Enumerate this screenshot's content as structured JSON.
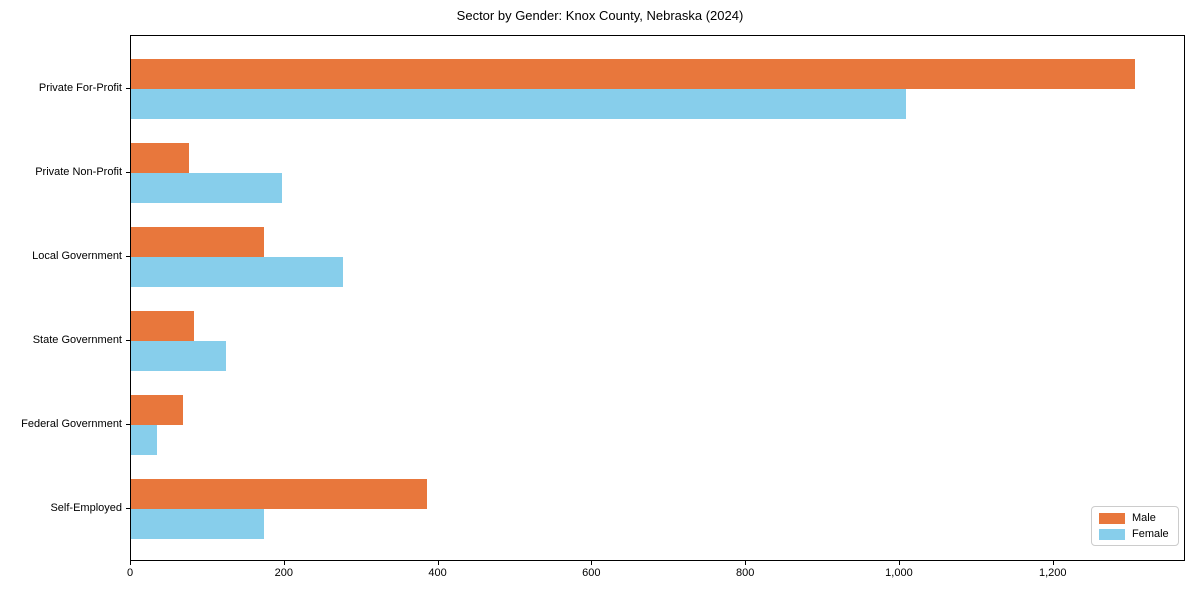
{
  "chart_data": {
    "type": "bar",
    "orientation": "horizontal",
    "title": "Sector by Gender: Knox County, Nebraska (2024)",
    "categories": [
      "Private For-Profit",
      "Private Non-Profit",
      "Local Government",
      "State Government",
      "Federal Government",
      "Self-Employed"
    ],
    "series": [
      {
        "name": "Male",
        "color": "#e8773c",
        "values": [
          1306,
          75,
          173,
          82,
          68,
          385
        ]
      },
      {
        "name": "Female",
        "color": "#87ceeb",
        "values": [
          1008,
          196,
          276,
          123,
          34,
          173
        ]
      }
    ],
    "xlabel": "",
    "ylabel": "",
    "xlim": [
      0,
      1372
    ],
    "xticks": [
      0,
      200,
      400,
      600,
      800,
      1000,
      1200
    ],
    "xtick_labels": [
      "0",
      "200",
      "400",
      "600",
      "800",
      "1,000",
      "1,200"
    ],
    "grid": false,
    "legend": {
      "position": "lower right",
      "entries": [
        "Male",
        "Female"
      ]
    },
    "colors": {
      "male": "#e8773c",
      "female": "#87ceeb",
      "spine": "#000000",
      "legend_border": "#cccccc"
    }
  }
}
